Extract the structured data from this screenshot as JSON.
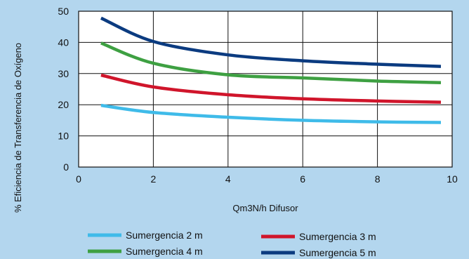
{
  "chart_data": {
    "type": "line",
    "xlabel": "Qm3N/h Difusor",
    "ylabel": "% Eficiencia de Transferencia de Oxígeno",
    "xlim": [
      0,
      10
    ],
    "ylim": [
      0,
      50
    ],
    "xticks": [
      "0",
      "2",
      "4",
      "6",
      "8",
      "10"
    ],
    "yticks": [
      "0",
      "10",
      "20",
      "30",
      "40",
      "50"
    ],
    "grid": true,
    "legend_position": "bottom",
    "background_color": "#b3d6ee",
    "plot_background_color": "#ffffff",
    "series": [
      {
        "name": "Sumergencia 2 m",
        "color": "#3fbbe9",
        "x": [
          0.6,
          2,
          4,
          6,
          8,
          9.7
        ],
        "y": [
          19.8,
          17.5,
          16.0,
          15.0,
          14.5,
          14.3
        ]
      },
      {
        "name": "Sumergencia 3 m",
        "color": "#d0152b",
        "x": [
          0.6,
          2,
          4,
          6,
          8,
          9.7
        ],
        "y": [
          29.5,
          25.7,
          23.2,
          21.9,
          21.2,
          20.8
        ]
      },
      {
        "name": "Sumergencia 4 m",
        "color": "#3ea042",
        "x": [
          0.6,
          2,
          4,
          6,
          8,
          9.7
        ],
        "y": [
          39.8,
          33.3,
          29.6,
          28.6,
          27.6,
          27.1
        ]
      },
      {
        "name": "Sumergencia 5 m",
        "color": "#0b3b80",
        "x": [
          0.6,
          2,
          4,
          6,
          8,
          9.7
        ],
        "y": [
          47.8,
          40.3,
          36.0,
          34.1,
          33.0,
          32.3
        ]
      }
    ]
  }
}
